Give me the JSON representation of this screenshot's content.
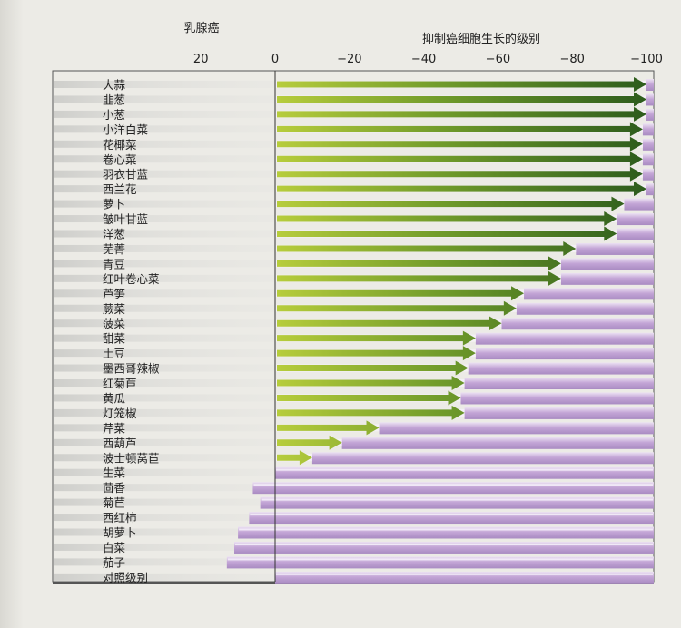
{
  "chart_data": {
    "type": "bar",
    "left_title": "乳腺癌",
    "right_title": "抑制癌细胞生长的级别",
    "ticks": [
      20,
      0,
      -20,
      -40,
      -60,
      -80,
      -100
    ],
    "xlim": [
      25,
      -100
    ],
    "categories": [
      "大蒜",
      "韭葱",
      "小葱",
      "小洋白菜",
      "花椰菜",
      "卷心菜",
      "羽衣甘蓝",
      "西兰花",
      "萝卜",
      "皱叶甘蓝",
      "洋葱",
      "芜菁",
      "青豆",
      "红叶卷心菜",
      "芦笋",
      "蕨菜",
      "菠菜",
      "甜菜",
      "土豆",
      "墨西哥辣椒",
      "红菊苣",
      "黄瓜",
      "灯笼椒",
      "芹菜",
      "西葫芦",
      "波士顿莴苣",
      "生菜",
      "茴香",
      "菊苣",
      "西红柿",
      "胡萝卜",
      "白菜",
      "茄子",
      "对照级别"
    ],
    "values": [
      -100,
      -100,
      -100,
      -99,
      -99,
      -99,
      -99,
      -100,
      -94,
      -92,
      -92,
      -81,
      -77,
      -77,
      -67,
      -65,
      -61,
      -54,
      -54,
      -52,
      -51,
      -50,
      -51,
      -28,
      -18,
      -10,
      0,
      6,
      4,
      7,
      10,
      11,
      13,
      0
    ],
    "colors": {
      "arrow_start": "#b6cc3c",
      "arrow_end": "#2c5b1c",
      "bar": "#c3a5d6",
      "bar_highlight": "#ece2f3",
      "row_stripe": "#c9c9c6"
    }
  }
}
